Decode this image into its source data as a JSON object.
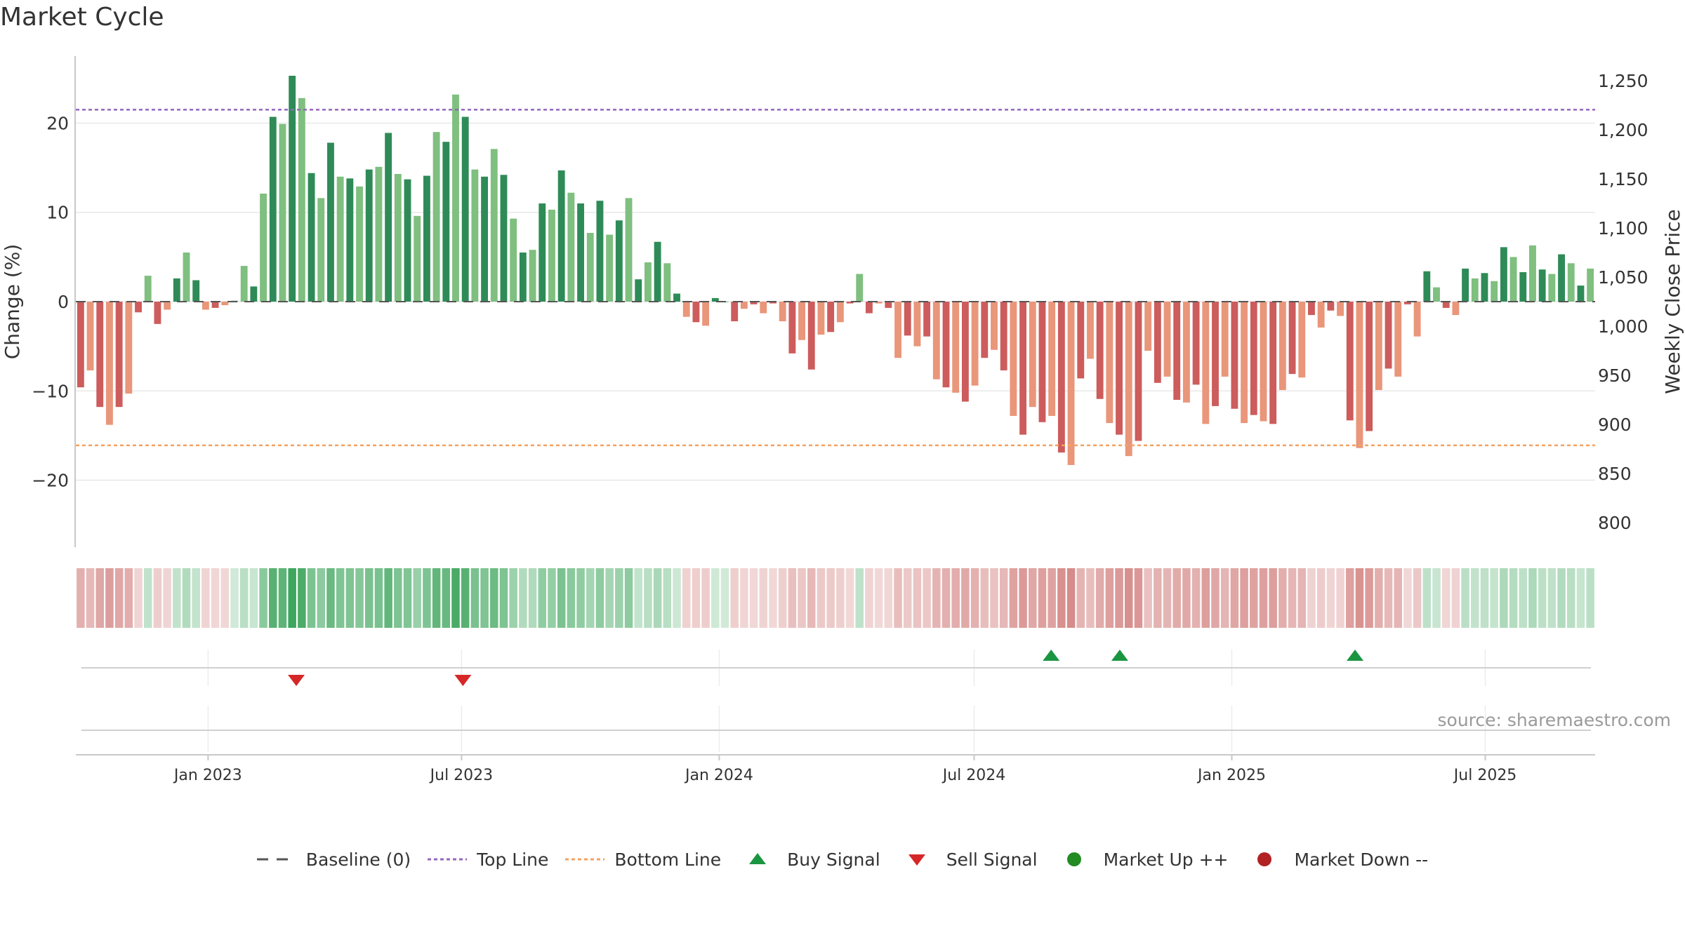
{
  "title": "Market Cycle",
  "source": "source: sharemaestro.com",
  "colors": {
    "strong_up": "#2e8b57",
    "mild_up": "#7fbf7f",
    "strong_down": "#cd5c5c",
    "mild_down": "#e9967a",
    "top_line": "#9467bd",
    "bottom_line": "#f4a261",
    "baseline": "#555555",
    "buy": "#1a9641",
    "sell": "#d62728",
    "market_up": "#228b22",
    "market_down": "#b22222"
  },
  "chart_data": {
    "type": "bar",
    "title": "Market Cycle",
    "ylabel": "Change (%)",
    "y2label": "Weekly Close Price",
    "ylim": [
      -27.5,
      27.5
    ],
    "y2lim": [
      775,
      1275
    ],
    "yticks": [
      -20,
      -10,
      0,
      10,
      20
    ],
    "y2ticks": [
      800,
      850,
      900,
      950,
      1000,
      1050,
      1100,
      1150,
      1200,
      1250
    ],
    "y2tick_labels": [
      "800",
      "850",
      "900",
      "950",
      "1,000",
      "1,050",
      "1,100",
      "1,150",
      "1,200",
      "1,250"
    ],
    "xticks": [
      {
        "date": "2023-01-01",
        "label": "Jan 2023"
      },
      {
        "date": "2023-07-01",
        "label": "Jul 2023"
      },
      {
        "date": "2024-01-01",
        "label": "Jan 2024"
      },
      {
        "date": "2024-07-01",
        "label": "Jul 2024"
      },
      {
        "date": "2025-01-01",
        "label": "Jan 2025"
      },
      {
        "date": "2025-07-01",
        "label": "Jul 2025"
      }
    ],
    "start_date": "2022-10-02",
    "end_date": "2025-09-14",
    "top_line": 21.5,
    "bottom_line": -16.1,
    "baseline": 0,
    "weekly_change": [
      -9.6,
      -7.7,
      -11.8,
      -13.8,
      -11.8,
      -10.3,
      -1.2,
      2.9,
      -2.5,
      -0.9,
      2.6,
      5.5,
      2.4,
      -0.9,
      -0.7,
      -0.4,
      0.1,
      4.0,
      1.7,
      12.1,
      20.7,
      19.9,
      25.3,
      22.8,
      14.4,
      11.6,
      17.8,
      14.0,
      13.8,
      12.9,
      14.8,
      15.1,
      18.9,
      14.3,
      13.7,
      9.6,
      14.1,
      19.0,
      17.9,
      23.2,
      20.7,
      14.8,
      14.0,
      17.1,
      14.2,
      9.3,
      5.5,
      5.8,
      11.0,
      10.3,
      14.7,
      12.2,
      11.0,
      7.7,
      11.3,
      7.5,
      9.1,
      11.6,
      2.5,
      4.4,
      6.7,
      4.3,
      0.9,
      -1.7,
      -2.3,
      -2.7,
      0.4,
      0.0,
      -2.2,
      -0.8,
      -0.3,
      -1.3,
      -0.2,
      -2.2,
      -5.8,
      -4.3,
      -7.6,
      -3.7,
      -3.4,
      -2.3,
      -0.2,
      3.1,
      -1.3,
      -0.2,
      -0.7,
      -6.3,
      -3.8,
      -5.0,
      -3.9,
      -8.7,
      -9.6,
      -10.2,
      -11.2,
      -9.4,
      -6.3,
      -5.4,
      -7.7,
      -12.8,
      -14.9,
      -11.8,
      -13.5,
      -12.8,
      -16.9,
      -18.3,
      -8.6,
      -6.4,
      -10.9,
      -13.6,
      -14.9,
      -17.3,
      -15.6,
      -5.5,
      -9.1,
      -8.4,
      -11.0,
      -11.3,
      -9.3,
      -13.7,
      -11.7,
      -8.4,
      -12.0,
      -13.6,
      -12.7,
      -13.4,
      -13.7,
      -9.9,
      -8.1,
      -8.5,
      -1.5,
      -2.9,
      -1.0,
      -1.6,
      -13.3,
      -16.4,
      -14.5,
      -9.9,
      -7.5,
      -8.4,
      -0.3,
      -3.9,
      3.4,
      1.6,
      -0.7,
      -1.5,
      3.7,
      2.6,
      3.2,
      2.3,
      6.1,
      5.0,
      3.3,
      6.3,
      3.6,
      3.1,
      5.3,
      4.3,
      1.8,
      3.7
    ],
    "buy_signals": [
      "2024-08-25",
      "2024-10-13",
      "2025-03-30"
    ],
    "sell_signals": [
      "2023-03-05",
      "2023-07-02"
    ],
    "market_up_markers": [],
    "market_down_markers": []
  },
  "legend": [
    {
      "key": "baseline",
      "label": "Baseline (0)"
    },
    {
      "key": "top_line",
      "label": "Top Line"
    },
    {
      "key": "bottom_line",
      "label": "Bottom Line"
    },
    {
      "key": "buy",
      "label": "Buy Signal"
    },
    {
      "key": "sell",
      "label": "Sell Signal"
    },
    {
      "key": "market_up",
      "label": "Market Up ++"
    },
    {
      "key": "market_down",
      "label": "Market Down --"
    }
  ]
}
